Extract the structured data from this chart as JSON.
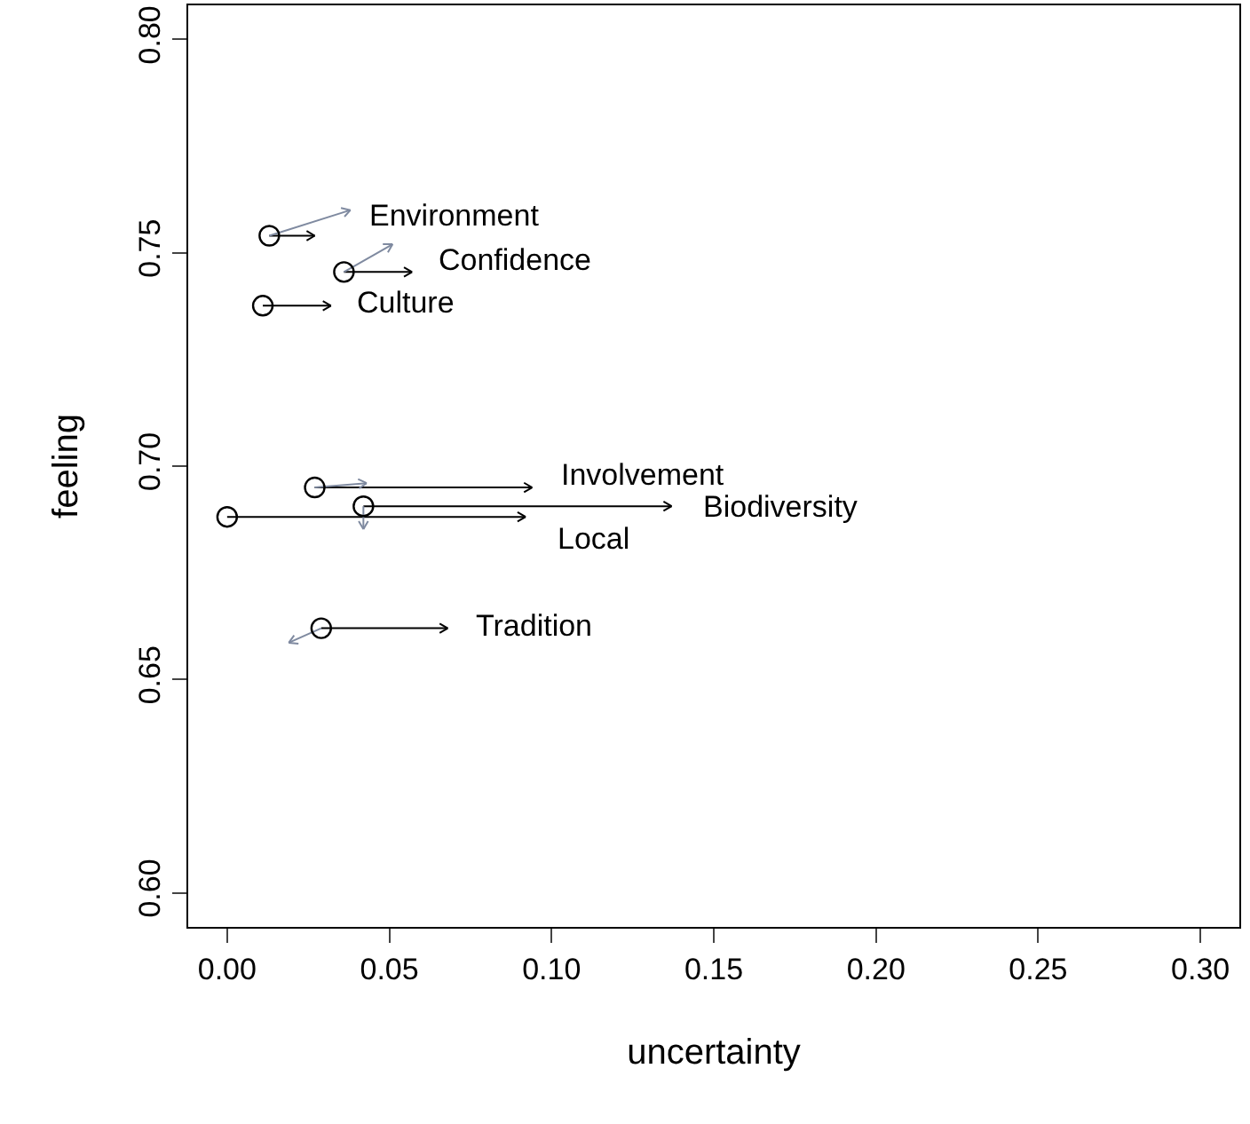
{
  "chart_data": {
    "type": "scatter",
    "xlabel": "uncertainty",
    "ylabel": "feeling",
    "xlim": [
      -0.012,
      0.312
    ],
    "ylim": [
      0.592,
      0.808
    ],
    "xticks": [
      {
        "value": 0,
        "label": "0.00"
      },
      0.05,
      {
        "value": 0.1,
        "label": "0.10"
      },
      0.15,
      {
        "value": 0.2,
        "label": "0.20"
      },
      0.25,
      {
        "value": 0.3,
        "label": "0.30"
      }
    ],
    "yticks": [
      {
        "value": 0.6,
        "label": "0.60"
      },
      0.65,
      {
        "value": 0.7,
        "label": "0.70"
      },
      0.75,
      {
        "value": 0.8,
        "label": "0.80"
      }
    ],
    "series": [
      {
        "type": "line",
        "color": "#000000",
        "x": [
          0.013,
          0.027,
          null,
          0.036,
          0.057,
          null,
          0.011,
          0.032,
          null,
          0.027,
          0.094,
          null,
          0.042,
          0.137,
          null,
          0.0,
          0.092,
          null,
          0.029,
          0.068
        ],
        "values": [
          0.754,
          0.754,
          null,
          0.7455,
          0.7455,
          null,
          0.7376,
          0.7376,
          null,
          0.695,
          0.695,
          null,
          0.6906,
          0.6906,
          null,
          0.6881,
          0.6881,
          null,
          0.662,
          0.662
        ]
      },
      {
        "type": "line",
        "color": "#7f8aa0",
        "x": [
          0.013,
          0.038,
          null,
          0.036,
          0.051,
          null,
          0.027,
          0.043,
          null,
          0.042,
          0.042,
          null,
          0.029,
          0.019
        ],
        "values": [
          0.754,
          0.76,
          null,
          0.7455,
          0.752,
          null,
          0.695,
          0.696,
          null,
          0.6906,
          0.6852,
          null,
          0.662,
          0.6586
        ]
      },
      {
        "color": "#000000",
        "marker": "circle",
        "x": [
          0.013,
          0.036,
          0.011,
          0.027,
          0.042,
          0.0,
          0.029
        ],
        "values": [
          0.754,
          0.7455,
          0.7376,
          0.695,
          0.6906,
          0.6881,
          0.662
        ]
      }
    ],
    "annotations": [
      "Environment",
      "Confidence",
      "Culture",
      "Involvement",
      "Biodiversity",
      "Local",
      "Tradition"
    ]
  }
}
